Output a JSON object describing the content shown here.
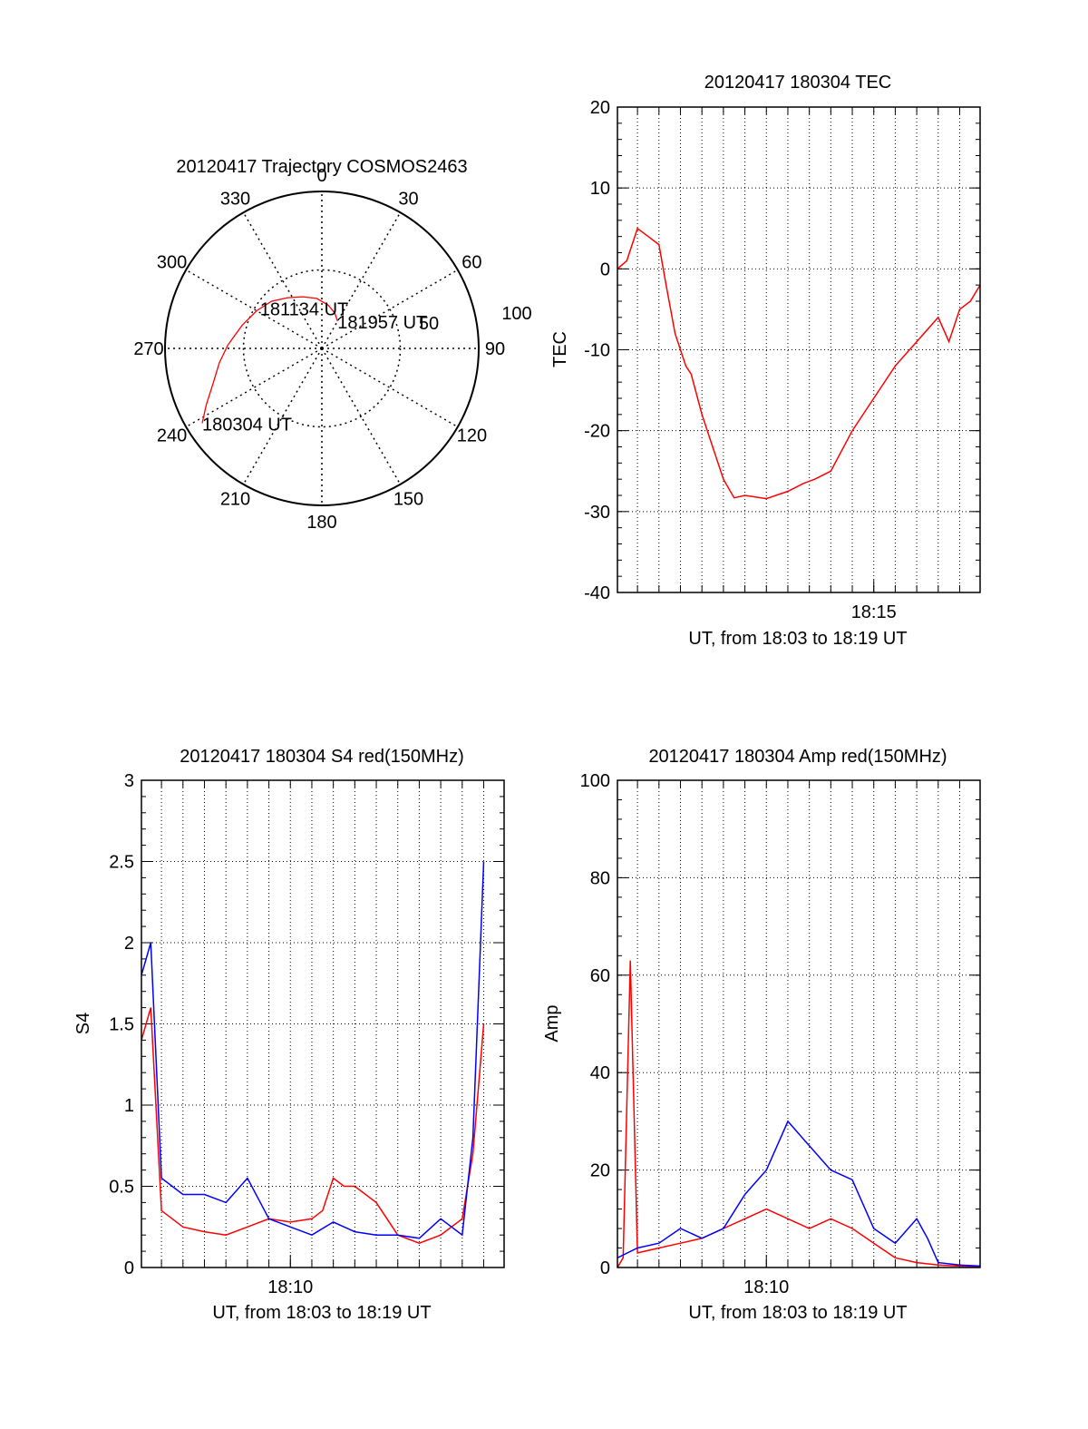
{
  "colors": {
    "red": "#ff0000",
    "blue": "#0000ff",
    "axis": "#000000",
    "grid": "#000000"
  },
  "chart_data": [
    {
      "type": "polar",
      "title": "20120417 Trajectory COSMOS2463",
      "azimuth_labels": [
        "0",
        "30",
        "60",
        "90",
        "120",
        "150",
        "180",
        "210",
        "240",
        "270",
        "300",
        "330"
      ],
      "radial_ticks": [
        50,
        100
      ],
      "radial_labels": [
        "50",
        "100"
      ],
      "radial_range": [
        0,
        100
      ],
      "series": [
        {
          "color": "#ff0000",
          "points": [
            [
              238,
              90
            ],
            [
              244,
              82
            ],
            [
              252,
              73
            ],
            [
              262,
              66
            ],
            [
              272,
              60
            ],
            [
              286,
              53
            ],
            [
              300,
              48
            ],
            [
              313,
              44
            ],
            [
              326,
              39
            ],
            [
              340,
              35
            ],
            [
              354,
              32
            ],
            [
              8,
              28
            ],
            [
              20,
              24
            ],
            [
              30,
              20
            ]
          ]
        }
      ],
      "annotations": [
        {
          "text": "180304 UT",
          "az": 238,
          "r": 90
        },
        {
          "text": "181134 UT",
          "az": 303,
          "r": 47
        },
        {
          "text": "181957 UT",
          "az": 30,
          "r": 20
        }
      ],
      "grid": true
    },
    {
      "type": "line",
      "title": "20120417 180304 TEC",
      "ylabel": "TEC",
      "xlabel": "UT, from 18:03 to 18:19 UT",
      "xlim": [
        "18:03:04",
        "18:19:57"
      ],
      "ylim": [
        -40,
        20
      ],
      "yticks": [
        "20",
        "10",
        "0",
        "-10",
        "-20",
        "-30",
        "-40"
      ],
      "xticks": [
        "18:15"
      ],
      "grid": true,
      "series": [
        {
          "color": "#ff0000",
          "x": [
            "18:03:04",
            "18:03:30",
            "18:04:00",
            "18:04:30",
            "18:05:00",
            "18:05:20",
            "18:05:45",
            "18:06:15",
            "18:06:30",
            "18:07:00",
            "18:07:30",
            "18:08:00",
            "18:08:30",
            "18:09:00",
            "18:10:00",
            "18:11:00",
            "18:11:45",
            "18:12:15",
            "18:13:00",
            "18:14:00",
            "18:15:00",
            "18:16:00",
            "18:17:00",
            "18:18:00",
            "18:18:30",
            "18:19:00",
            "18:19:30",
            "18:19:57"
          ],
          "y": [
            0,
            1,
            5,
            4,
            3,
            -2,
            -8,
            -12,
            -13,
            -18,
            -22,
            -26,
            -28.3,
            -28,
            -28.4,
            -27.5,
            -26.5,
            -26,
            -25,
            -20,
            -16,
            -12,
            -9,
            -6,
            -9,
            -5,
            -4,
            -2
          ]
        }
      ]
    },
    {
      "type": "line",
      "title": "20120417 180304 S4 red(150MHz)",
      "ylabel": "S4",
      "xlabel": "UT, from 18:03 to 18:19 UT",
      "xlim": [
        "18:03:04",
        "18:19:57"
      ],
      "ylim": [
        0,
        3
      ],
      "yticks": [
        "3",
        "2.5",
        "2",
        "1.5",
        "1",
        "0.5",
        "0"
      ],
      "xticks": [
        "18:10"
      ],
      "grid": true,
      "series": [
        {
          "color": "#ff0000",
          "x": [
            "18:03:04",
            "18:03:30",
            "18:04:00",
            "18:05:00",
            "18:06:00",
            "18:07:00",
            "18:08:00",
            "18:09:00",
            "18:10:00",
            "18:11:00",
            "18:11:30",
            "18:12:00",
            "18:12:30",
            "18:13:00",
            "18:14:00",
            "18:15:00",
            "18:16:00",
            "18:17:00",
            "18:18:00",
            "18:18:30",
            "18:19:00"
          ],
          "y": [
            1.4,
            1.6,
            0.35,
            0.25,
            0.22,
            0.2,
            0.25,
            0.3,
            0.28,
            0.3,
            0.35,
            0.55,
            0.5,
            0.5,
            0.4,
            0.2,
            0.15,
            0.2,
            0.3,
            0.7,
            1.5
          ]
        },
        {
          "color": "#0000ff",
          "x": [
            "18:03:04",
            "18:03:30",
            "18:04:00",
            "18:05:00",
            "18:06:00",
            "18:07:00",
            "18:08:00",
            "18:09:00",
            "18:10:00",
            "18:11:00",
            "18:12:00",
            "18:13:00",
            "18:14:00",
            "18:15:00",
            "18:16:00",
            "18:17:00",
            "18:18:00",
            "18:18:30",
            "18:19:00"
          ],
          "y": [
            1.8,
            2.0,
            0.55,
            0.45,
            0.45,
            0.4,
            0.55,
            0.3,
            0.25,
            0.2,
            0.28,
            0.22,
            0.2,
            0.2,
            0.18,
            0.3,
            0.2,
            0.8,
            2.5
          ]
        }
      ]
    },
    {
      "type": "line",
      "title": "20120417 180304 Amp red(150MHz)",
      "ylabel": "Amp",
      "xlabel": "UT, from 18:03 to 18:19 UT",
      "xlim": [
        "18:03:04",
        "18:19:57"
      ],
      "ylim": [
        0,
        100
      ],
      "yticks": [
        "100",
        "80",
        "60",
        "40",
        "20",
        "0"
      ],
      "xticks": [
        "18:10"
      ],
      "grid": true,
      "series": [
        {
          "color": "#ff0000",
          "x": [
            "18:03:04",
            "18:03:20",
            "18:03:40",
            "18:04:00",
            "18:05:00",
            "18:06:00",
            "18:07:00",
            "18:08:00",
            "18:09:00",
            "18:10:00",
            "18:11:00",
            "18:12:00",
            "18:13:00",
            "18:14:00",
            "18:15:00",
            "18:16:00",
            "18:17:00",
            "18:18:00",
            "18:19:00",
            "18:19:57"
          ],
          "y": [
            0,
            2,
            63,
            3,
            4,
            5,
            6,
            8,
            10,
            12,
            10,
            8,
            10,
            8,
            5,
            2,
            1,
            0.5,
            0.3,
            0.2
          ]
        },
        {
          "color": "#0000ff",
          "x": [
            "18:03:04",
            "18:04:00",
            "18:05:00",
            "18:06:00",
            "18:07:00",
            "18:08:00",
            "18:09:00",
            "18:10:00",
            "18:11:00",
            "18:12:00",
            "18:13:00",
            "18:14:00",
            "18:15:00",
            "18:16:00",
            "18:17:00",
            "18:17:30",
            "18:18:00",
            "18:19:00",
            "18:19:57"
          ],
          "y": [
            2,
            4,
            5,
            8,
            6,
            8,
            15,
            20,
            30,
            25,
            20,
            18,
            8,
            5,
            10,
            6,
            1,
            0.5,
            0.3
          ]
        }
      ]
    }
  ]
}
